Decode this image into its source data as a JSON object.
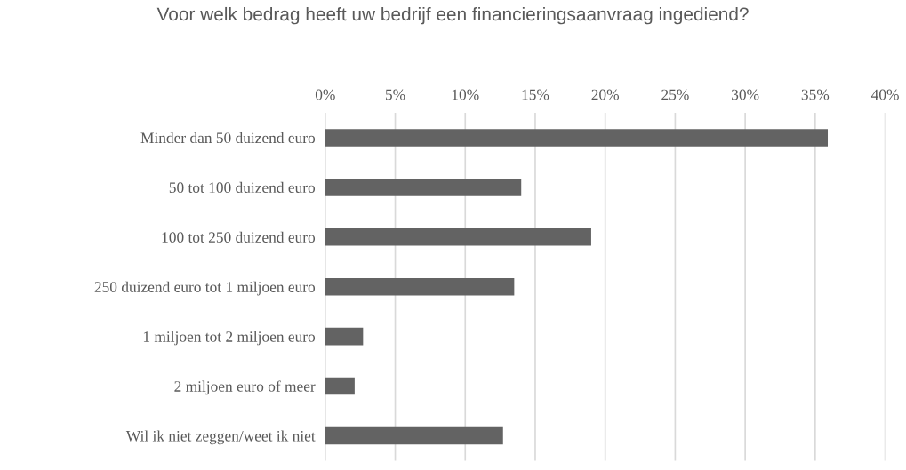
{
  "chart_data": {
    "type": "bar",
    "orientation": "horizontal",
    "title": "Voor welk bedrag heeft uw bedrijf een financieringsaanvraag ingediend?",
    "categories": [
      "Minder dan 50 duizend euro",
      "50 tot 100 duizend euro",
      "100 tot 250 duizend euro",
      "250 duizend euro tot 1 miljoen euro",
      "1 miljoen tot 2 miljoen euro",
      "2 miljoen euro of meer",
      "Wil ik niet zeggen/weet ik niet"
    ],
    "values": [
      35.9,
      14.0,
      19.0,
      13.5,
      2.7,
      2.1,
      12.7
    ],
    "color": "#636363",
    "xlim": [
      0,
      40
    ],
    "xticks": [
      {
        "value": 0,
        "label": "0%"
      },
      {
        "value": 5,
        "label": "5%"
      },
      {
        "value": 10,
        "label": "10%"
      },
      {
        "value": 15,
        "label": "15%"
      },
      {
        "value": 20,
        "label": "20%"
      },
      {
        "value": 25,
        "label": "25%"
      },
      {
        "value": 30,
        "label": "30%"
      },
      {
        "value": 35,
        "label": "35%"
      },
      {
        "value": 40,
        "label": "40%"
      }
    ],
    "grid": "x"
  }
}
